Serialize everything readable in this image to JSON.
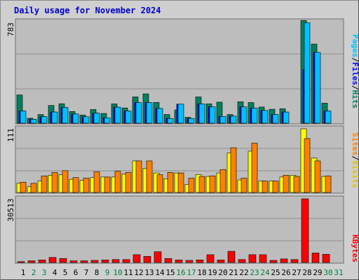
{
  "title": "Daily usage for November 2024",
  "colors": {
    "pages": "#00c0ff",
    "files": "#0000ff",
    "hits": "#008060",
    "sites": "#ff8000",
    "visits": "#ffff00",
    "kbytes": "#ff0000",
    "weekend": "#008040",
    "weekday": "#000000"
  },
  "legend": {
    "pages": "Pages",
    "files": "Files",
    "hits": "Hits",
    "sites": "Sites",
    "visits": "Visits",
    "kbytes": "KBytes",
    "sep": "/"
  },
  "chart_data": [
    {
      "type": "bar",
      "panel": "hits-files-pages",
      "ymax_label": "783",
      "ylim": [
        0,
        783
      ],
      "categories": [
        "1",
        "2",
        "3",
        "4",
        "5",
        "6",
        "7",
        "8",
        "9",
        "10",
        "11",
        "12",
        "13",
        "14",
        "15",
        "16",
        "17",
        "18",
        "19",
        "20",
        "21",
        "22",
        "23",
        "24",
        "25",
        "26",
        "27",
        "28",
        "29",
        "30",
        "31"
      ],
      "weekend_days": [
        "2",
        "3",
        "9",
        "10",
        "16",
        "17",
        "23",
        "24",
        "30",
        "31"
      ],
      "series": [
        {
          "name": "Hits",
          "values": [
            215,
            38,
            66,
            135,
            148,
            89,
            62,
            104,
            74,
            147,
            116,
            200,
            223,
            158,
            66,
            101,
            45,
            200,
            147,
            160,
            66,
            163,
            157,
            123,
            106,
            110,
            0,
            782,
            602,
            152,
            0
          ]
        },
        {
          "name": "Files",
          "values": [
            93,
            30,
            50,
            85,
            120,
            70,
            49,
            77,
            41,
            122,
            93,
            156,
            157,
            112,
            36,
            145,
            36,
            147,
            124,
            51,
            54,
            124,
            115,
            97,
            67,
            85,
            0,
            409,
            539,
            93,
            0
          ]
        },
        {
          "name": "Pages",
          "values": [
            93,
            30,
            50,
            85,
            120,
            70,
            49,
            77,
            41,
            122,
            93,
            156,
            157,
            112,
            36,
            145,
            36,
            147,
            124,
            51,
            54,
            124,
            115,
            97,
            67,
            85,
            0,
            764,
            539,
            93,
            0
          ]
        }
      ]
    },
    {
      "type": "bar",
      "panel": "visits-sites",
      "ymax_label": "111",
      "ylim": [
        0,
        111
      ],
      "series": [
        {
          "name": "Visits",
          "values": [
            16,
            10,
            20,
            30,
            31,
            23,
            21,
            26,
            27,
            27,
            32,
            55,
            42,
            34,
            24,
            34,
            14,
            31,
            28,
            34,
            69,
            22,
            72,
            20,
            20,
            27,
            30,
            111,
            60,
            28,
            0
          ]
        },
        {
          "name": "Sites",
          "values": [
            18,
            16,
            29,
            35,
            38,
            26,
            25,
            36,
            27,
            37,
            35,
            55,
            55,
            31,
            35,
            34,
            25,
            28,
            29,
            40,
            78,
            25,
            86,
            20,
            20,
            30,
            28,
            94,
            55,
            29,
            0
          ]
        }
      ]
    },
    {
      "type": "bar",
      "panel": "kbytes",
      "ymax_label": "30513",
      "ylim": [
        0,
        30513
      ],
      "series": [
        {
          "name": "KBytes",
          "values": [
            404,
            808,
            1211,
            2422,
            1918,
            808,
            808,
            1009,
            1211,
            1413,
            1413,
            3734,
            2926,
            5147,
            1918,
            1211,
            1009,
            1211,
            3734,
            1211,
            5348,
            1413,
            3734,
            3734,
            1009,
            1716,
            1413,
            30513,
            4542,
            3936,
            0
          ]
        }
      ]
    }
  ]
}
